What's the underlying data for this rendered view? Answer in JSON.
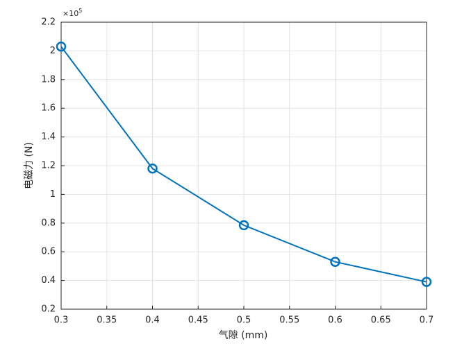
{
  "chart_data": {
    "type": "line",
    "x_label": "气隙 (mm)",
    "y_label": "电磁力 (N)",
    "y_scale_label": {
      "base": "×10",
      "exponent": "5"
    },
    "x": [
      0.3,
      0.4,
      0.5,
      0.6,
      0.7
    ],
    "series": [
      {
        "color": "#0072bd",
        "values": [
          2.03,
          1.18,
          0.785,
          0.53,
          0.39
        ]
      }
    ],
    "xlim": [
      0.3,
      0.7
    ],
    "xticks": [
      0.3,
      0.35,
      0.4,
      0.45,
      0.5,
      0.55,
      0.6,
      0.65,
      0.7
    ],
    "ylim": [
      0.2,
      2.2
    ],
    "yticks": [
      0.2,
      0.4,
      0.6,
      0.8,
      1,
      1.2,
      1.4,
      1.6,
      1.8,
      2,
      2.2
    ],
    "grid": true,
    "marker": "circle"
  }
}
